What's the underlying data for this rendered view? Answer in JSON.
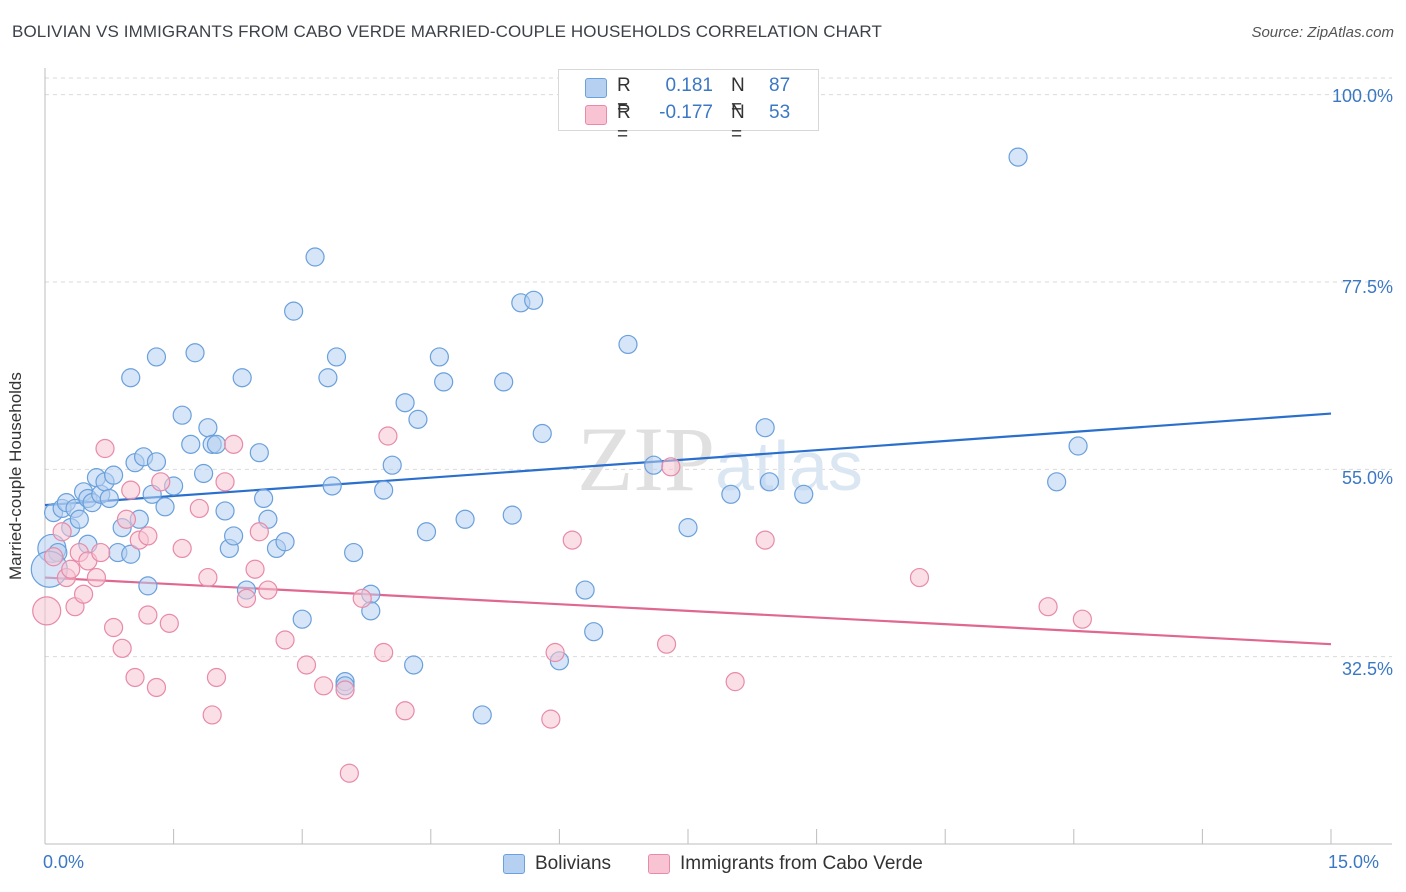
{
  "chart_data": {
    "type": "scatter",
    "title": "BOLIVIAN VS IMMIGRANTS FROM CABO VERDE MARRIED-COUPLE HOUSEHOLDS CORRELATION CHART",
    "source": "Source: ZipAtlas.com",
    "xlabel": "",
    "ylabel": "Married-couple Households",
    "xlim": [
      0,
      15
    ],
    "ylim": [
      10,
      102
    ],
    "x_tick_labels": [
      "0.0%",
      "15.0%"
    ],
    "y_ticks": [
      32.5,
      55.0,
      77.5,
      100.0
    ],
    "y_tick_labels": [
      "32.5%",
      "55.0%",
      "77.5%",
      "100.0%"
    ],
    "watermark": "ZIPatlas",
    "legend": [
      {
        "r_label": "R =",
        "r_value": "0.181",
        "n_label": "N =",
        "n_value": "87"
      },
      {
        "r_label": "R =",
        "r_value": "-0.177",
        "n_label": "N =",
        "n_value": "53"
      }
    ],
    "series": [
      {
        "name": "Bolivians",
        "color": "#6aa0dc",
        "fill": "#b5d0f0",
        "line_color": "#2a6fcc",
        "trend": [
          [
            0,
            50.7
          ],
          [
            15,
            61.7
          ]
        ],
        "points": [
          [
            0.08,
            45.5
          ],
          [
            0.1,
            49.8
          ],
          [
            0.15,
            45.0
          ],
          [
            0.2,
            50.3
          ],
          [
            0.25,
            51.0
          ],
          [
            0.3,
            48.0
          ],
          [
            0.35,
            50.3
          ],
          [
            0.4,
            49.0
          ],
          [
            0.45,
            52.3
          ],
          [
            0.5,
            51.5
          ],
          [
            0.55,
            51.0
          ],
          [
            0.6,
            54.0
          ],
          [
            0.65,
            52.0
          ],
          [
            0.7,
            53.5
          ],
          [
            0.75,
            51.5
          ],
          [
            0.8,
            54.3
          ],
          [
            0.85,
            45.0
          ],
          [
            0.9,
            48.0
          ],
          [
            1.0,
            66.0
          ],
          [
            1.05,
            55.8
          ],
          [
            1.1,
            49.0
          ],
          [
            1.15,
            56.5
          ],
          [
            1.2,
            41.0
          ],
          [
            1.25,
            52.0
          ],
          [
            1.3,
            55.9
          ],
          [
            1.3,
            68.5
          ],
          [
            1.5,
            53.0
          ],
          [
            1.6,
            61.5
          ],
          [
            1.7,
            58.0
          ],
          [
            1.75,
            69.0
          ],
          [
            1.85,
            54.5
          ],
          [
            1.9,
            60.0
          ],
          [
            1.95,
            58.0
          ],
          [
            2.1,
            50.0
          ],
          [
            2.15,
            45.5
          ],
          [
            2.2,
            47.0
          ],
          [
            2.3,
            66.0
          ],
          [
            2.35,
            40.5
          ],
          [
            2.5,
            57.0
          ],
          [
            2.55,
            51.5
          ],
          [
            2.6,
            49.0
          ],
          [
            2.7,
            45.5
          ],
          [
            2.9,
            74.0
          ],
          [
            3.0,
            37.0
          ],
          [
            3.15,
            80.5
          ],
          [
            3.3,
            66.0
          ],
          [
            3.35,
            53.0
          ],
          [
            3.4,
            68.5
          ],
          [
            3.5,
            29.5
          ],
          [
            3.6,
            45.0
          ],
          [
            3.8,
            40.0
          ],
          [
            3.95,
            52.5
          ],
          [
            4.05,
            55.5
          ],
          [
            4.2,
            63.0
          ],
          [
            4.35,
            61.0
          ],
          [
            4.45,
            47.5
          ],
          [
            4.6,
            68.5
          ],
          [
            4.65,
            65.5
          ],
          [
            4.9,
            49.0
          ],
          [
            5.1,
            25.5
          ],
          [
            5.35,
            65.5
          ],
          [
            5.45,
            49.5
          ],
          [
            5.55,
            75.0
          ],
          [
            5.7,
            75.3
          ],
          [
            5.8,
            59.3
          ],
          [
            6.0,
            32.0
          ],
          [
            6.3,
            40.5
          ],
          [
            6.4,
            35.5
          ],
          [
            6.8,
            70.0
          ],
          [
            7.1,
            55.5
          ],
          [
            7.5,
            48.0
          ],
          [
            8.0,
            52.0
          ],
          [
            8.4,
            60.0
          ],
          [
            8.45,
            53.5
          ],
          [
            8.85,
            52.0
          ],
          [
            11.35,
            92.5
          ],
          [
            11.8,
            53.5
          ],
          [
            12.05,
            57.8
          ],
          [
            0.5,
            46.0
          ],
          [
            1.0,
            44.8
          ],
          [
            2.0,
            58.0
          ],
          [
            0.05,
            43.0
          ],
          [
            3.5,
            29.0
          ],
          [
            3.8,
            38.0
          ],
          [
            4.3,
            31.5
          ],
          [
            1.4,
            50.5
          ],
          [
            2.8,
            46.3
          ]
        ],
        "sizes": [
          14,
          9,
          9,
          9,
          9,
          9,
          9,
          9,
          9,
          9,
          9,
          9,
          9,
          9,
          9,
          9,
          9,
          9,
          9,
          9,
          9,
          9,
          9,
          9,
          9,
          9,
          9,
          9,
          9,
          9,
          9,
          9,
          9,
          9,
          9,
          9,
          9,
          9,
          9,
          9,
          9,
          9,
          9,
          9,
          9,
          9,
          9,
          9,
          9,
          9,
          9,
          9,
          9,
          9,
          9,
          9,
          9,
          9,
          9,
          9,
          9,
          9,
          9,
          9,
          9,
          9,
          9,
          9,
          9,
          9,
          9,
          9,
          9,
          9,
          9,
          9,
          9,
          9,
          9,
          9,
          9,
          18,
          9,
          9,
          9,
          9,
          9
        ]
      },
      {
        "name": "Immigrants from Cabo Verde",
        "color": "#e88aa8",
        "fill": "#f8c4d4",
        "line_color": "#e0678f",
        "trend": [
          [
            0,
            42.0
          ],
          [
            15,
            34.0
          ]
        ],
        "points": [
          [
            0.02,
            38.0
          ],
          [
            0.1,
            44.5
          ],
          [
            0.2,
            47.5
          ],
          [
            0.25,
            42.0
          ],
          [
            0.35,
            38.5
          ],
          [
            0.4,
            45.0
          ],
          [
            0.45,
            40.0
          ],
          [
            0.5,
            44.0
          ],
          [
            0.6,
            42.0
          ],
          [
            0.65,
            45.0
          ],
          [
            0.7,
            57.5
          ],
          [
            0.8,
            36.0
          ],
          [
            0.9,
            33.5
          ],
          [
            0.95,
            49.0
          ],
          [
            1.05,
            30.0
          ],
          [
            1.1,
            46.5
          ],
          [
            1.2,
            37.5
          ],
          [
            1.3,
            28.8
          ],
          [
            1.35,
            53.5
          ],
          [
            1.45,
            36.5
          ],
          [
            1.6,
            45.5
          ],
          [
            1.8,
            50.3
          ],
          [
            1.9,
            42.0
          ],
          [
            1.95,
            25.5
          ],
          [
            2.0,
            30.0
          ],
          [
            2.1,
            53.5
          ],
          [
            2.2,
            58.0
          ],
          [
            2.35,
            39.5
          ],
          [
            2.45,
            43.0
          ],
          [
            2.6,
            40.5
          ],
          [
            2.8,
            34.5
          ],
          [
            3.05,
            31.5
          ],
          [
            3.25,
            29.0
          ],
          [
            3.5,
            28.5
          ],
          [
            3.55,
            18.5
          ],
          [
            3.7,
            39.5
          ],
          [
            3.95,
            33.0
          ],
          [
            4.0,
            59.0
          ],
          [
            4.2,
            26.0
          ],
          [
            5.9,
            25.0
          ],
          [
            5.95,
            33.0
          ],
          [
            6.15,
            46.5
          ],
          [
            7.25,
            34.0
          ],
          [
            7.3,
            55.3
          ],
          [
            8.05,
            29.5
          ],
          [
            8.4,
            46.5
          ],
          [
            10.2,
            42.0
          ],
          [
            11.7,
            38.5
          ],
          [
            12.1,
            37.0
          ],
          [
            1.0,
            52.5
          ],
          [
            0.3,
            43.0
          ],
          [
            1.2,
            47.0
          ],
          [
            2.5,
            47.5
          ]
        ],
        "sizes": [
          14,
          9,
          9,
          9,
          9,
          9,
          9,
          9,
          9,
          9,
          9,
          9,
          9,
          9,
          9,
          9,
          9,
          9,
          9,
          9,
          9,
          9,
          9,
          9,
          9,
          9,
          9,
          9,
          9,
          9,
          9,
          9,
          9,
          9,
          9,
          9,
          9,
          9,
          9,
          9,
          9,
          9,
          9,
          9,
          9,
          9,
          9,
          9,
          9,
          9,
          9,
          9,
          9
        ]
      }
    ]
  }
}
